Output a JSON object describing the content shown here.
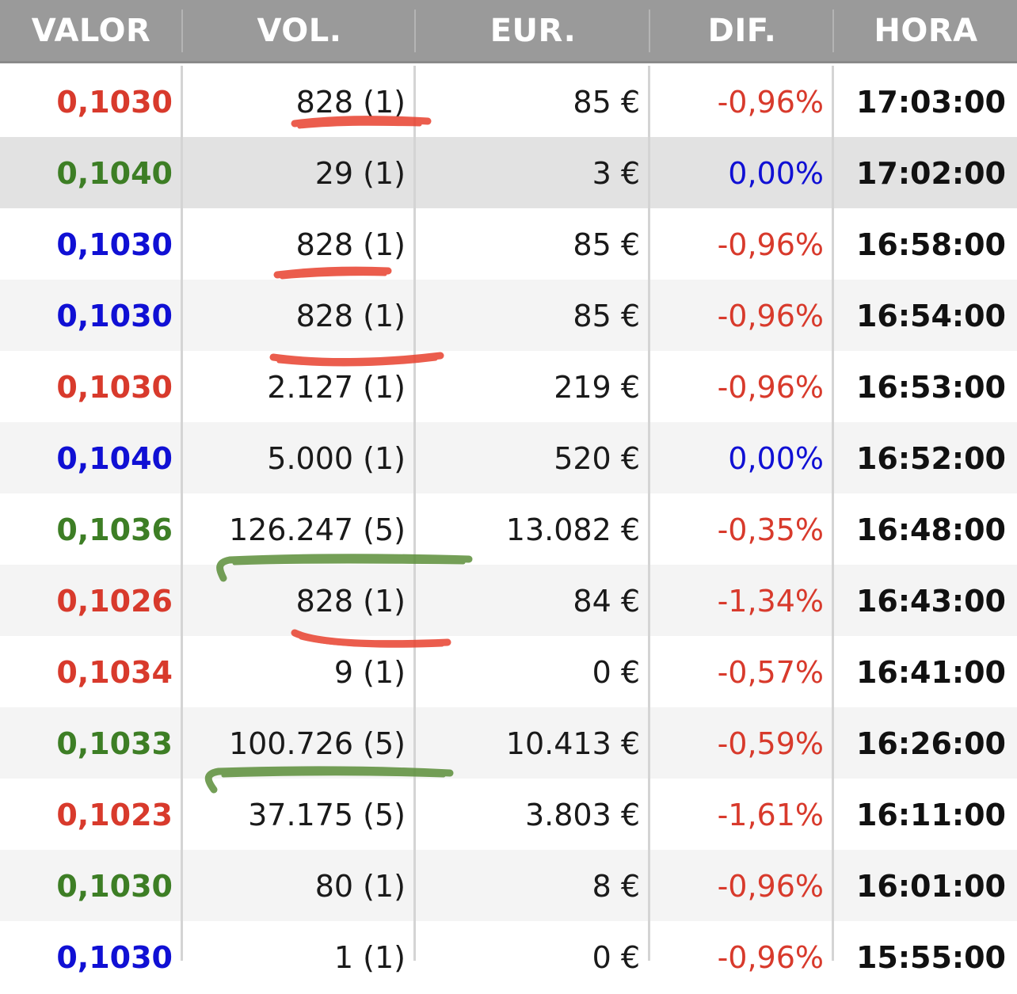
{
  "colors": {
    "header_bg": "#9a9a9a",
    "red": "#d83a2c",
    "green": "#3d7e25",
    "blue": "#1010d4",
    "red_marker": "#e8412e",
    "green_marker": "#5c8f3a"
  },
  "table": {
    "headers": [
      "VALOR",
      "VOL.",
      "EUR.",
      "DIF.",
      "HORA"
    ],
    "rows": [
      {
        "valor": "0,1030",
        "valor_color": "red",
        "vol": "828 (1)",
        "eur": "85 €",
        "dif": "-0,96%",
        "dif_color": "red",
        "hora": "17:03:00"
      },
      {
        "valor": "0,1040",
        "valor_color": "green",
        "vol": "29 (1)",
        "eur": "3 €",
        "dif": "0,00%",
        "dif_color": "blue",
        "hora": "17:02:00"
      },
      {
        "valor": "0,1030",
        "valor_color": "blue",
        "vol": "828 (1)",
        "eur": "85 €",
        "dif": "-0,96%",
        "dif_color": "red",
        "hora": "16:58:00"
      },
      {
        "valor": "0,1030",
        "valor_color": "blue",
        "vol": "828 (1)",
        "eur": "85 €",
        "dif": "-0,96%",
        "dif_color": "red",
        "hora": "16:54:00"
      },
      {
        "valor": "0,1030",
        "valor_color": "red",
        "vol": "2.127 (1)",
        "eur": "219 €",
        "dif": "-0,96%",
        "dif_color": "red",
        "hora": "16:53:00"
      },
      {
        "valor": "0,1040",
        "valor_color": "blue",
        "vol": "5.000 (1)",
        "eur": "520 €",
        "dif": "0,00%",
        "dif_color": "blue",
        "hora": "16:52:00"
      },
      {
        "valor": "0,1036",
        "valor_color": "green",
        "vol": "126.247 (5)",
        "eur": "13.082 €",
        "dif": "-0,35%",
        "dif_color": "red",
        "hora": "16:48:00"
      },
      {
        "valor": "0,1026",
        "valor_color": "red",
        "vol": "828 (1)",
        "eur": "84 €",
        "dif": "-1,34%",
        "dif_color": "red",
        "hora": "16:43:00"
      },
      {
        "valor": "0,1034",
        "valor_color": "red",
        "vol": "9 (1)",
        "eur": "0 €",
        "dif": "-0,57%",
        "dif_color": "red",
        "hora": "16:41:00"
      },
      {
        "valor": "0,1033",
        "valor_color": "green",
        "vol": "100.726 (5)",
        "eur": "10.413 €",
        "dif": "-0,59%",
        "dif_color": "red",
        "hora": "16:26:00"
      },
      {
        "valor": "0,1023",
        "valor_color": "red",
        "vol": "37.175 (5)",
        "eur": "3.803 €",
        "dif": "-1,61%",
        "dif_color": "red",
        "hora": "16:11:00"
      },
      {
        "valor": "0,1030",
        "valor_color": "green",
        "vol": "80 (1)",
        "eur": "8 €",
        "dif": "-0,96%",
        "dif_color": "red",
        "hora": "16:01:00"
      },
      {
        "valor": "0,1030",
        "valor_color": "blue",
        "vol": "1 (1)",
        "eur": "0 €",
        "dif": "-0,96%",
        "dif_color": "red",
        "hora": "15:55:00"
      }
    ]
  }
}
